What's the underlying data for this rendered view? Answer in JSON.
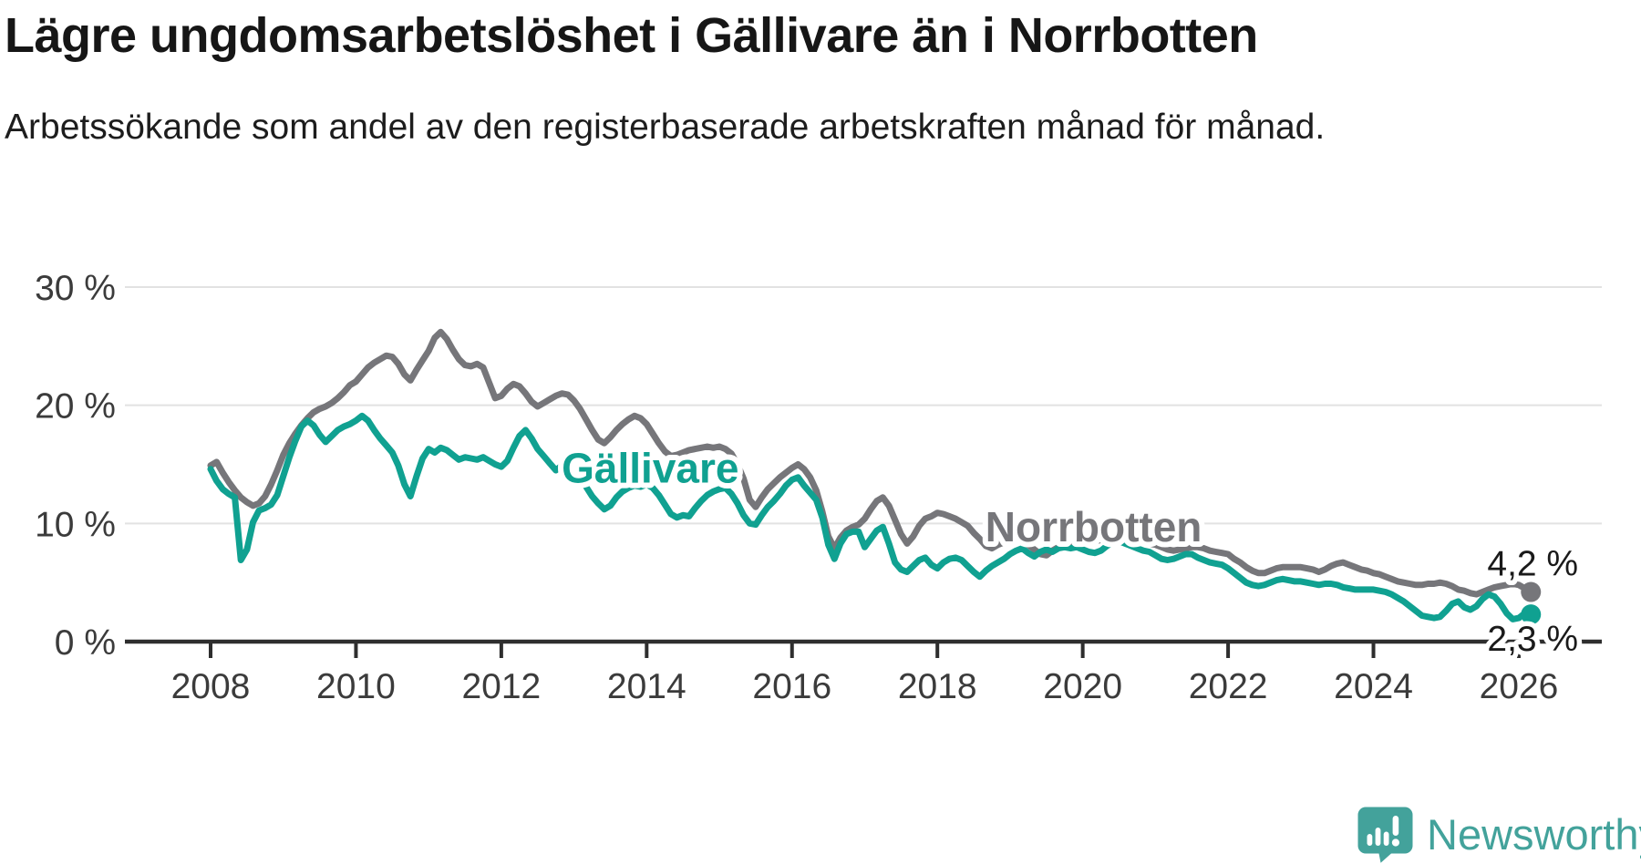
{
  "page": {
    "background": "#FFFFFF"
  },
  "chart_data": {
    "type": "line",
    "title": "Lägre ungdomsarbetslöshet i Gällivare än i Norrbotten",
    "subtitle": "Arbetssökande som andel av den registerbaserade arbetskraften månad för månad.",
    "unit": "%",
    "grid": "horizontal",
    "legend": "inline-series-labels",
    "axis_color": "#2E2E2E",
    "gridline_color": "#E2E2E2",
    "tick_label_color": "#3B3B3B",
    "x_axis": {
      "frequency": "monthly",
      "start": {
        "year": 2008,
        "month": 1
      },
      "end": {
        "year": 2026,
        "month": 3
      },
      "tick_years": [
        2008,
        2010,
        2012,
        2014,
        2016,
        2018,
        2020,
        2022,
        2024,
        2026
      ]
    },
    "y_axis": {
      "min": 0,
      "max": 30,
      "ticks": [
        {
          "value": 0,
          "label": "0 %"
        },
        {
          "value": 10,
          "label": "10 %"
        },
        {
          "value": 20,
          "label": "20 %"
        },
        {
          "value": 30,
          "label": "30 %"
        }
      ]
    },
    "series": [
      {
        "name": "Norrbotten",
        "color": "#76767A",
        "label_anchor": {
          "year": 2020.15,
          "value": 9.7
        },
        "end_label": "4,2 %",
        "end_label_position": "above",
        "latest_value": 4.2,
        "values_monthly": [
          14.9,
          15.2,
          14.3,
          13.5,
          12.8,
          12.2,
          11.8,
          11.5,
          11.7,
          12.3,
          13.3,
          14.5,
          15.8,
          16.8,
          17.6,
          18.3,
          18.9,
          19.4,
          19.7,
          19.9,
          20.2,
          20.6,
          21.1,
          21.7,
          22.0,
          22.6,
          23.2,
          23.6,
          23.9,
          24.2,
          24.1,
          23.5,
          22.6,
          22.1,
          23.0,
          23.8,
          24.6,
          25.7,
          26.2,
          25.6,
          24.7,
          23.9,
          23.4,
          23.3,
          23.5,
          23.2,
          21.9,
          20.6,
          20.8,
          21.4,
          21.8,
          21.6,
          21.0,
          20.3,
          19.9,
          20.2,
          20.5,
          20.8,
          21.0,
          20.9,
          20.4,
          19.7,
          18.8,
          17.9,
          17.1,
          16.8,
          17.3,
          17.9,
          18.4,
          18.8,
          19.1,
          18.9,
          18.4,
          17.6,
          16.8,
          16.1,
          15.7,
          15.8,
          16.0,
          16.2,
          16.3,
          16.4,
          16.5,
          16.4,
          16.5,
          16.3,
          15.9,
          15.0,
          13.8,
          12.0,
          11.4,
          12.2,
          12.9,
          13.4,
          13.9,
          14.3,
          14.7,
          15.0,
          14.6,
          13.9,
          12.8,
          11.0,
          8.9,
          7.9,
          8.8,
          9.4,
          9.7,
          9.9,
          10.4,
          11.2,
          11.9,
          12.2,
          11.5,
          10.3,
          9.1,
          8.3,
          8.9,
          9.8,
          10.4,
          10.6,
          10.9,
          10.8,
          10.6,
          10.4,
          10.1,
          9.8,
          9.2,
          8.7,
          8.1,
          7.9,
          8.2,
          8.4,
          8.6,
          8.6,
          8.5,
          8.2,
          7.8,
          7.4,
          7.3,
          7.7,
          8.0,
          8.2,
          8.4,
          8.5,
          8.5,
          8.4,
          8.5,
          8.6,
          8.7,
          8.8,
          8.8,
          8.7,
          8.6,
          8.5,
          8.4,
          8.3,
          8.2,
          8.0,
          7.8,
          7.7,
          7.8,
          7.9,
          8.0,
          8.0,
          7.9,
          7.7,
          7.6,
          7.5,
          7.4,
          7.0,
          6.7,
          6.3,
          6.0,
          5.8,
          5.8,
          6.0,
          6.2,
          6.3,
          6.3,
          6.3,
          6.3,
          6.2,
          6.1,
          5.9,
          6.1,
          6.4,
          6.6,
          6.7,
          6.5,
          6.3,
          6.1,
          6.0,
          5.8,
          5.7,
          5.5,
          5.3,
          5.1,
          5.0,
          4.9,
          4.8,
          4.8,
          4.9,
          4.9,
          5.0,
          4.9,
          4.7,
          4.4,
          4.3,
          4.1,
          4.0,
          4.2,
          4.4,
          4.6,
          4.7,
          4.8,
          4.9,
          4.8,
          4.5,
          4.2
        ]
      },
      {
        "name": "Gällivare",
        "color": "#10A191",
        "label_anchor": {
          "year": 2014.05,
          "value": 14.7
        },
        "end_label": "2,3 %",
        "end_label_position": "below",
        "latest_value": 2.3,
        "values_monthly": [
          14.6,
          13.6,
          12.9,
          12.5,
          12.2,
          6.9,
          7.8,
          10.1,
          11.1,
          11.3,
          11.6,
          12.4,
          14.0,
          15.6,
          17.0,
          18.2,
          18.7,
          18.3,
          17.5,
          16.9,
          17.4,
          17.9,
          18.2,
          18.4,
          18.7,
          19.1,
          18.7,
          17.9,
          17.2,
          16.6,
          16.0,
          14.9,
          13.3,
          12.3,
          14.0,
          15.5,
          16.3,
          16.0,
          16.4,
          16.2,
          15.8,
          15.4,
          15.6,
          15.5,
          15.4,
          15.6,
          15.3,
          15.0,
          14.8,
          15.3,
          16.4,
          17.4,
          17.9,
          17.2,
          16.3,
          15.7,
          15.1,
          14.5,
          14.9,
          15.3,
          14.7,
          13.9,
          13.1,
          12.3,
          11.7,
          11.2,
          11.5,
          12.2,
          12.7,
          13.0,
          13.2,
          13.1,
          13.3,
          13.0,
          12.4,
          11.6,
          10.8,
          10.5,
          10.7,
          10.6,
          11.3,
          11.9,
          12.4,
          12.7,
          12.9,
          13.0,
          12.5,
          11.7,
          10.7,
          10.0,
          9.9,
          10.7,
          11.4,
          11.9,
          12.5,
          13.2,
          13.7,
          13.9,
          13.2,
          12.6,
          12.0,
          10.5,
          8.2,
          7.0,
          8.3,
          9.1,
          9.3,
          9.3,
          8.0,
          8.7,
          9.4,
          9.7,
          8.3,
          6.7,
          6.1,
          5.9,
          6.4,
          6.9,
          7.1,
          6.5,
          6.2,
          6.7,
          7.0,
          7.1,
          6.9,
          6.4,
          5.9,
          5.5,
          6.0,
          6.4,
          6.7,
          7.0,
          7.4,
          7.7,
          7.9,
          7.5,
          7.2,
          7.6,
          7.8,
          7.6,
          7.9,
          8.0,
          7.9,
          8.0,
          7.8,
          7.6,
          7.5,
          7.7,
          8.1,
          8.4,
          8.5,
          8.3,
          8.1,
          7.9,
          7.7,
          7.6,
          7.3,
          7.0,
          6.9,
          7.0,
          7.2,
          7.4,
          7.4,
          7.1,
          6.9,
          6.7,
          6.6,
          6.5,
          6.2,
          5.8,
          5.4,
          5.0,
          4.8,
          4.7,
          4.8,
          5.0,
          5.2,
          5.3,
          5.2,
          5.1,
          5.1,
          5.0,
          4.9,
          4.8,
          4.9,
          4.9,
          4.8,
          4.6,
          4.5,
          4.4,
          4.4,
          4.4,
          4.4,
          4.3,
          4.2,
          4.0,
          3.7,
          3.4,
          3.0,
          2.6,
          2.2,
          2.1,
          2.0,
          2.1,
          2.6,
          3.2,
          3.4,
          2.9,
          2.7,
          3.0,
          3.6,
          4.0,
          3.8,
          3.2,
          2.4,
          1.9,
          2.0,
          2.4,
          2.3
        ]
      }
    ]
  },
  "branding": {
    "name": "Newsworthy",
    "color": "#43A29B"
  }
}
